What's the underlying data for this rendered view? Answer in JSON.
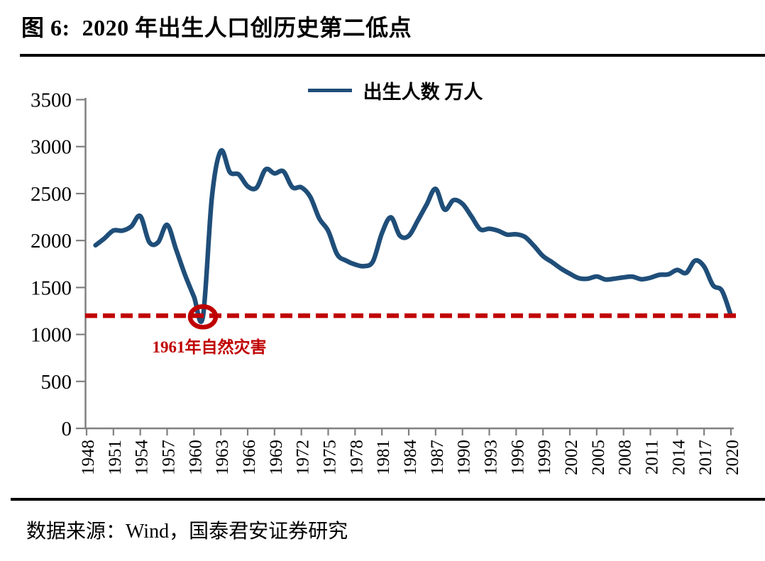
{
  "figure": {
    "title": "图 6:  2020 年出生人口创历史第二低点",
    "source": "数据来源：Wind，国泰君安证券研究"
  },
  "chart_data": {
    "type": "line",
    "title": "2020 年出生人口创历史第二低点",
    "legend": [
      {
        "name": "出生人数 万人",
        "color": "#1F4E79"
      }
    ],
    "legend_position": "top-center",
    "smooth": true,
    "grid": false,
    "xlim": [
      1948,
      2020
    ],
    "ylim": [
      0,
      3500
    ],
    "yticks": [
      0,
      500,
      1000,
      1500,
      2000,
      2500,
      3000,
      3500
    ],
    "xticks": [
      1948,
      1951,
      1954,
      1957,
      1960,
      1963,
      1966,
      1969,
      1972,
      1975,
      1978,
      1981,
      1984,
      1987,
      1990,
      1993,
      1996,
      1999,
      2002,
      2005,
      2008,
      2011,
      2014,
      2017,
      2020
    ],
    "x": [
      1949,
      1950,
      1951,
      1952,
      1953,
      1954,
      1955,
      1956,
      1957,
      1958,
      1959,
      1960,
      1961,
      1962,
      1963,
      1964,
      1965,
      1966,
      1967,
      1968,
      1969,
      1970,
      1971,
      1972,
      1973,
      1974,
      1975,
      1976,
      1977,
      1978,
      1979,
      1980,
      1981,
      1982,
      1983,
      1984,
      1985,
      1986,
      1987,
      1988,
      1989,
      1990,
      1991,
      1992,
      1993,
      1994,
      1995,
      1996,
      1997,
      1998,
      1999,
      2000,
      2001,
      2002,
      2003,
      2004,
      2005,
      2006,
      2007,
      2008,
      2009,
      2010,
      2011,
      2012,
      2013,
      2014,
      2015,
      2016,
      2017,
      2018,
      2019,
      2020
    ],
    "series": [
      {
        "name": "出生人数 万人",
        "color": "#1F4E79",
        "values": [
          1950,
          2023,
          2107,
          2105,
          2151,
          2260,
          1984,
          1982,
          2167,
          1905,
          1635,
          1402,
          1187,
          2460,
          2954,
          2729,
          2704,
          2577,
          2563,
          2757,
          2715,
          2736,
          2567,
          2566,
          2463,
          2235,
          2102,
          1853,
          1786,
          1745,
          1727,
          1779,
          2078,
          2247,
          2052,
          2050,
          2211,
          2384,
          2550,
          2330,
          2430,
          2391,
          2258,
          2119,
          2126,
          2104,
          2063,
          2067,
          2038,
          1942,
          1834,
          1771,
          1702,
          1647,
          1599,
          1593,
          1617,
          1585,
          1594,
          1608,
          1615,
          1588,
          1604,
          1635,
          1640,
          1687,
          1655,
          1786,
          1723,
          1523,
          1465,
          1200
        ]
      }
    ],
    "threshold_line": {
      "value": 1200,
      "style": "dashed",
      "color": "#C00000"
    },
    "annotation": {
      "text": "1961年自然灾害",
      "year": 1961,
      "value": 1187,
      "color": "#C00000"
    },
    "axis_color": "#808080",
    "text_color": "#000000"
  }
}
